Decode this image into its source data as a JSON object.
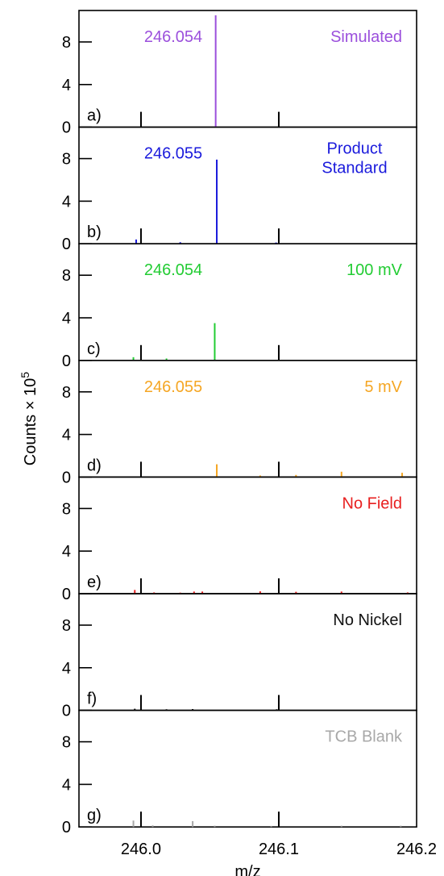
{
  "chart_data": {
    "type": "bar",
    "xlabel": "m/z",
    "ylabel": "Counts × 10",
    "ylabel_superscript": "5",
    "xlim": [
      245.955,
      246.2
    ],
    "ylim": [
      0,
      10
    ],
    "x_ticks": [
      246.0,
      246.1,
      246.2
    ],
    "x_tick_labels": [
      "246.0",
      "246.1",
      "246.2"
    ],
    "y_ticks": [
      0,
      4,
      8
    ],
    "y_tick_labels": [
      "0",
      "4",
      "8"
    ],
    "panels": [
      {
        "label": "a)",
        "name": "Simulated",
        "peak_label": "246.054",
        "color": "#9b4fdc",
        "peaks": [
          {
            "x": 246.0542,
            "y": 10.5
          }
        ]
      },
      {
        "label": "b)",
        "name_lines": [
          "Product",
          "Standard"
        ],
        "peak_label": "246.055",
        "color": "#1a1adc",
        "peaks": [
          {
            "x": 246.055,
            "y": 7.9
          },
          {
            "x": 245.9965,
            "y": 0.4
          },
          {
            "x": 246.0285,
            "y": 0.15
          },
          {
            "x": 246.098,
            "y": 0.12
          }
        ]
      },
      {
        "label": "c)",
        "name": "100 mV",
        "peak_label": "246.054",
        "color": "#22cc33",
        "peaks": [
          {
            "x": 246.0535,
            "y": 3.5
          },
          {
            "x": 245.9945,
            "y": 0.3
          },
          {
            "x": 246.0185,
            "y": 0.18
          }
        ]
      },
      {
        "label": "d)",
        "name": "5 mV",
        "peak_label": "246.055",
        "color": "#f5a623",
        "peaks": [
          {
            "x": 246.055,
            "y": 1.2
          },
          {
            "x": 246.1455,
            "y": 0.5
          },
          {
            "x": 246.1895,
            "y": 0.4
          },
          {
            "x": 246.1125,
            "y": 0.2
          },
          {
            "x": 246.0865,
            "y": 0.15
          }
        ]
      },
      {
        "label": "e)",
        "name": "No Field",
        "peak_label": "",
        "color": "#e82020",
        "peaks": [
          {
            "x": 245.9955,
            "y": 0.35
          },
          {
            "x": 246.0385,
            "y": 0.2
          },
          {
            "x": 246.0445,
            "y": 0.2
          },
          {
            "x": 246.0865,
            "y": 0.22
          },
          {
            "x": 246.1125,
            "y": 0.18
          },
          {
            "x": 246.1455,
            "y": 0.2
          },
          {
            "x": 246.0095,
            "y": 0.12
          },
          {
            "x": 246.0285,
            "y": 0.1
          },
          {
            "x": 246.1935,
            "y": 0.12
          }
        ]
      },
      {
        "label": "f)",
        "name": "No Nickel",
        "peak_label": "",
        "color": "#111111",
        "peaks": [
          {
            "x": 245.9955,
            "y": 0.15
          },
          {
            "x": 246.0185,
            "y": 0.1
          },
          {
            "x": 246.0375,
            "y": 0.12
          },
          {
            "x": 246.0985,
            "y": 0.1
          }
        ]
      },
      {
        "label": "g)",
        "name": "TCB Blank",
        "peak_label": "",
        "color": "#a8a8a8",
        "peaks": [
          {
            "x": 245.9945,
            "y": 0.6
          },
          {
            "x": 246.0375,
            "y": 0.55
          },
          {
            "x": 246.0085,
            "y": 0.15
          },
          {
            "x": 246.0535,
            "y": 0.12
          },
          {
            "x": 246.1455,
            "y": 0.12
          },
          {
            "x": 246.1885,
            "y": 0.12
          },
          {
            "x": 246.0945,
            "y": 0.1
          }
        ]
      }
    ]
  }
}
